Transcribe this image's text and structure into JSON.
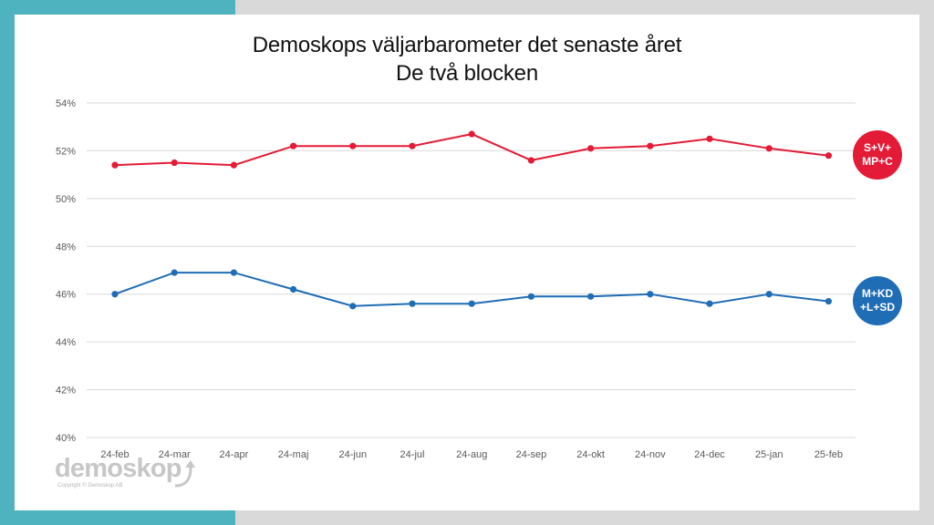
{
  "colors": {
    "background": "#d9d9d9",
    "accent_teal": "#4fb3bf",
    "red_bloc": "#e31b37",
    "blue_bloc": "#1f6db5",
    "grid": "#d9d9d9"
  },
  "title": {
    "line1": "Demoskops väljarbarometer det senaste året",
    "line2": "De två blocken"
  },
  "badges": {
    "red": "S+V+\nMP+C",
    "blue": "M+KD\n+L+SD"
  },
  "logo": {
    "wordmark": "demoskop",
    "copyright": "Copyright © Demoskop AB",
    "icon": "arrow-up-curve-icon"
  },
  "chart_data": {
    "type": "line",
    "categories": [
      "24-feb",
      "24-mar",
      "24-apr",
      "24-maj",
      "24-jun",
      "24-jul",
      "24-aug",
      "24-sep",
      "24-okt",
      "24-nov",
      "24-dec",
      "25-jan",
      "25-feb"
    ],
    "series": [
      {
        "name": "S+V+MP+C",
        "color": "#e31b37",
        "values": [
          51.4,
          51.5,
          51.4,
          52.2,
          52.2,
          52.2,
          52.7,
          51.6,
          52.1,
          52.2,
          52.5,
          52.1,
          51.8
        ]
      },
      {
        "name": "M+KD+L+SD",
        "color": "#1f6db5",
        "values": [
          46.0,
          46.9,
          46.9,
          46.2,
          45.5,
          45.6,
          45.6,
          45.9,
          45.9,
          46.0,
          45.6,
          46.0,
          45.7
        ]
      }
    ],
    "yticks": [
      "54%",
      "52%",
      "50%",
      "48%",
      "46%",
      "44%",
      "42%",
      "40%"
    ],
    "ylim": [
      40,
      54
    ],
    "grid": true,
    "legend": "right (circular labels)"
  }
}
